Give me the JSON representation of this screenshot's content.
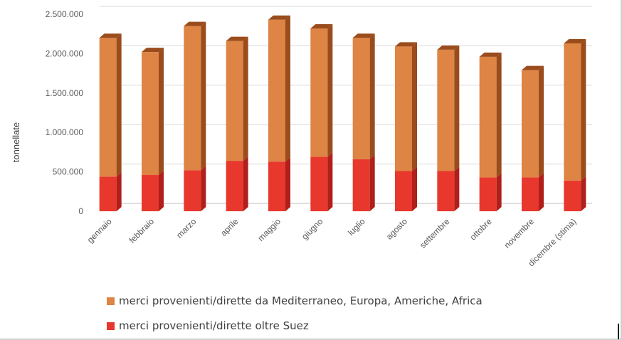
{
  "chart_data": {
    "type": "bar",
    "stacked": true,
    "categories": [
      "gennaio",
      "febbraio",
      "marzo",
      "aprile",
      "maggio",
      "giugno",
      "luglio",
      "agosto",
      "settembre",
      "ottobre",
      "novembre",
      "dicembre (stima)"
    ],
    "series": [
      {
        "name": "merci provenienti/dirette oltre Suez",
        "color": "#e8372c",
        "side_color": "#b01f19",
        "values": [
          440000,
          460000,
          520000,
          640000,
          630000,
          690000,
          660000,
          510000,
          510000,
          430000,
          430000,
          390000
        ]
      },
      {
        "name": "merci provenienti/dirette da Mediterraneo, Europa, Americhe, Africa",
        "color": "#de8444",
        "side_color": "#9a4c1c",
        "values": [
          1760000,
          1560000,
          1830000,
          1520000,
          1800000,
          1630000,
          1540000,
          1580000,
          1540000,
          1530000,
          1360000,
          1740000
        ]
      }
    ],
    "ylabel": "tonnellate",
    "xlabel": "",
    "title": "",
    "ylim": [
      0,
      2500000
    ],
    "yticks": [
      0,
      500000,
      1000000,
      1500000,
      2000000,
      2500000
    ],
    "ytick_labels": [
      "0",
      "500.000",
      "1.000.000",
      "1.500.000",
      "2.000.000",
      "2.500.000"
    ],
    "grid": true,
    "legend_position": "bottom"
  }
}
